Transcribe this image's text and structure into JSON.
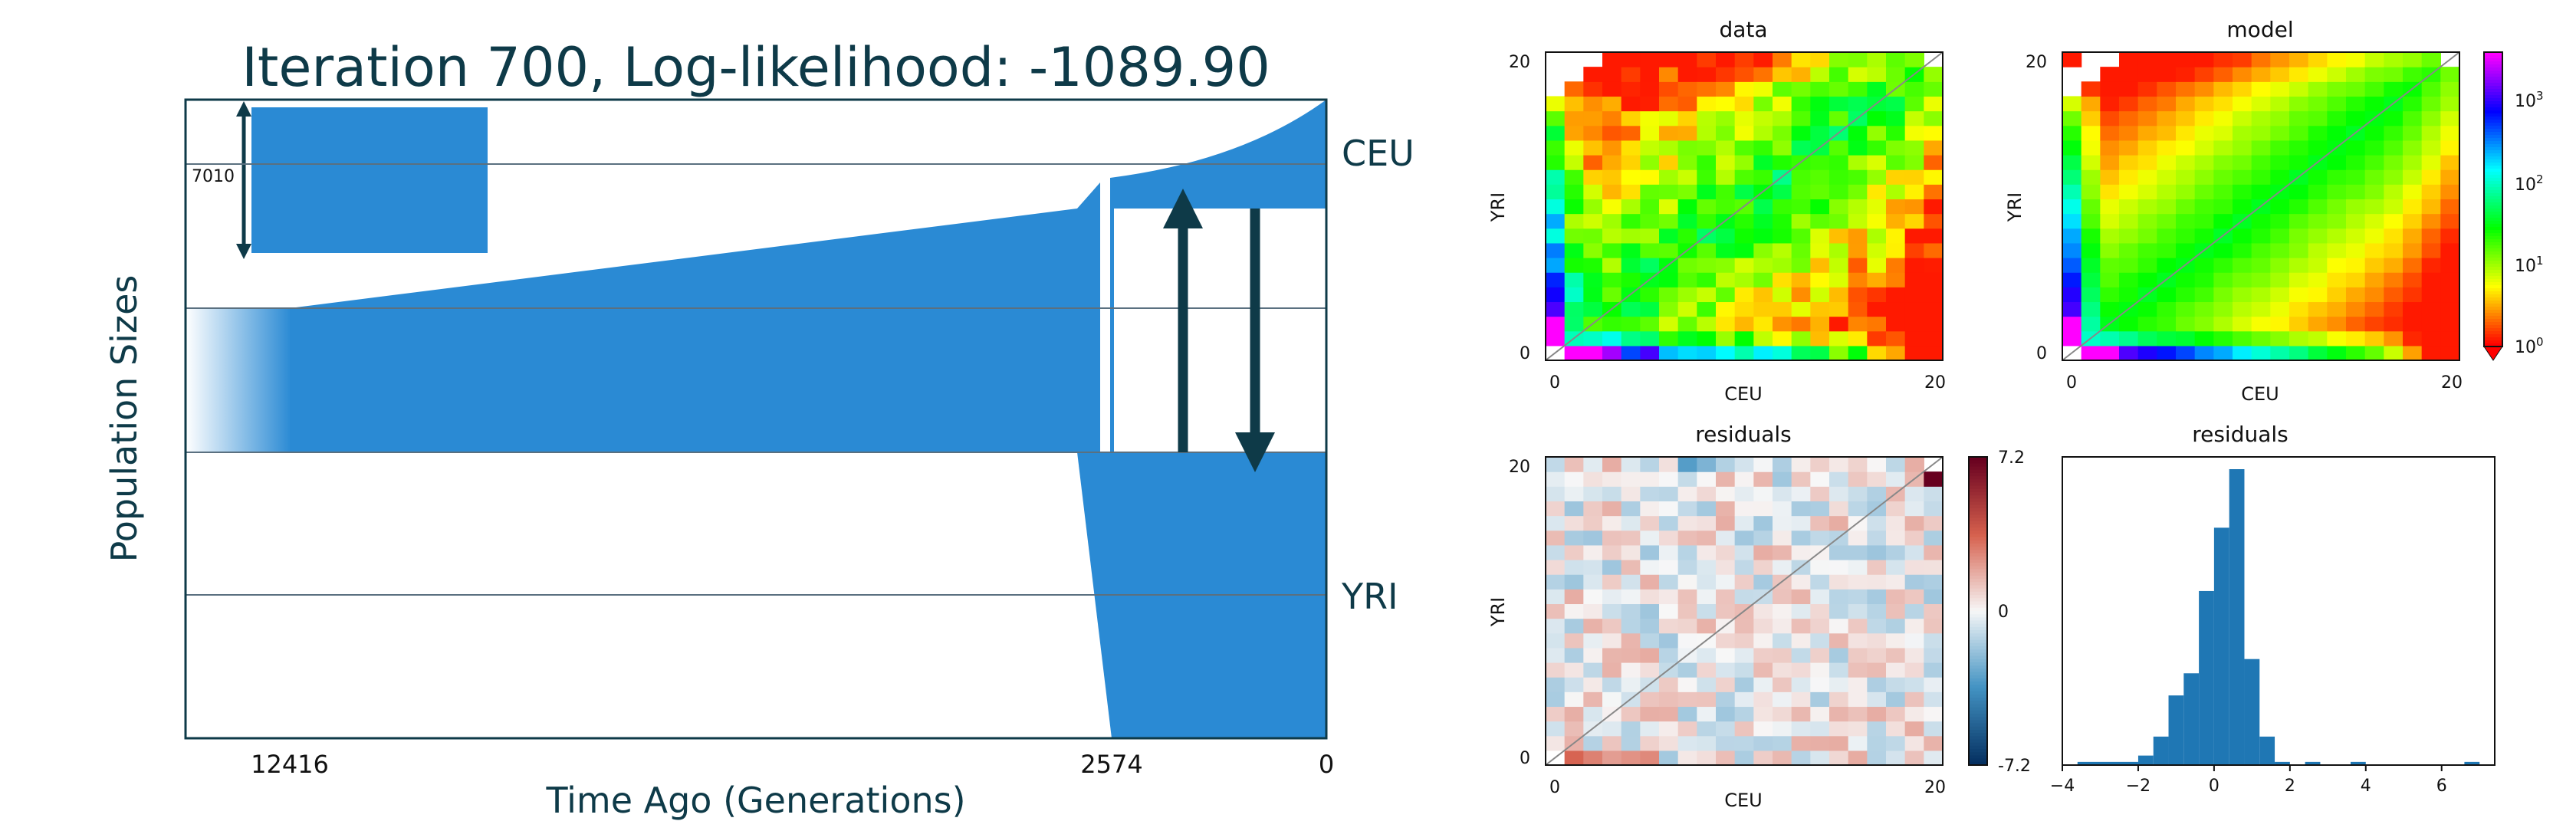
{
  "colors": {
    "population_fill": "#2a8ad4",
    "arrow": "#0e3a48",
    "frame": "#0e3a48",
    "hist_bar": "#1f77b4",
    "title_text": "#0e3a48"
  },
  "demography": {
    "title": "Iteration 700, Log-likelihood: -1089.90",
    "ylabel": "Population Sizes",
    "xlabel": "Time Ago (Generations)",
    "xticks": [
      "12416",
      "2574",
      "0"
    ],
    "scale_label": "7010",
    "populations": [
      "CEU",
      "YRI"
    ]
  },
  "chart_data": [
    {
      "type": "heatmap",
      "title": "data",
      "xlabel": "CEU",
      "ylabel": "YRI",
      "xticks": [
        "0",
        "20"
      ],
      "yticks": [
        "0",
        "20"
      ],
      "colorscale": "log",
      "grid_size": 21
    },
    {
      "type": "heatmap",
      "title": "model",
      "xlabel": "CEU",
      "ylabel": "YRI",
      "xticks": [
        "0",
        "20"
      ],
      "yticks": [
        "0",
        "20"
      ],
      "colorscale": "log",
      "grid_size": 21,
      "colorbar_ticks": [
        "10^0",
        "10^1",
        "10^2",
        "10^3"
      ]
    },
    {
      "type": "heatmap",
      "title": "residuals",
      "xlabel": "CEU",
      "ylabel": "YRI",
      "xticks": [
        "0",
        "20"
      ],
      "yticks": [
        "0",
        "20"
      ],
      "grid_size": 21,
      "colorbar_ticks": [
        "7.2",
        "0",
        "-7.2"
      ]
    },
    {
      "type": "bar",
      "title": "residuals",
      "x_range": [
        -4,
        7.4
      ],
      "xticks": [
        "−4",
        "−2",
        "0",
        "2",
        "4",
        "6"
      ],
      "bins": [
        {
          "x0": -3.6,
          "x1": -2.0,
          "count": 2
        },
        {
          "x0": -2.0,
          "x1": -1.6,
          "count": 6
        },
        {
          "x0": -1.6,
          "x1": -1.2,
          "count": 18
        },
        {
          "x0": -1.2,
          "x1": -0.8,
          "count": 44
        },
        {
          "x0": -0.8,
          "x1": -0.4,
          "count": 58
        },
        {
          "x0": -0.4,
          "x1": 0.0,
          "count": 110
        },
        {
          "x0": 0.0,
          "x1": 0.4,
          "count": 150
        },
        {
          "x0": 0.4,
          "x1": 0.8,
          "count": 187
        },
        {
          "x0": 0.8,
          "x1": 1.2,
          "count": 67
        },
        {
          "x0": 1.2,
          "x1": 1.6,
          "count": 18
        },
        {
          "x0": 1.6,
          "x1": 2.0,
          "count": 2
        },
        {
          "x0": 2.4,
          "x1": 2.8,
          "count": 2
        },
        {
          "x0": 3.6,
          "x1": 4.0,
          "count": 2
        },
        {
          "x0": 6.6,
          "x1": 7.0,
          "count": 2
        }
      ]
    }
  ]
}
